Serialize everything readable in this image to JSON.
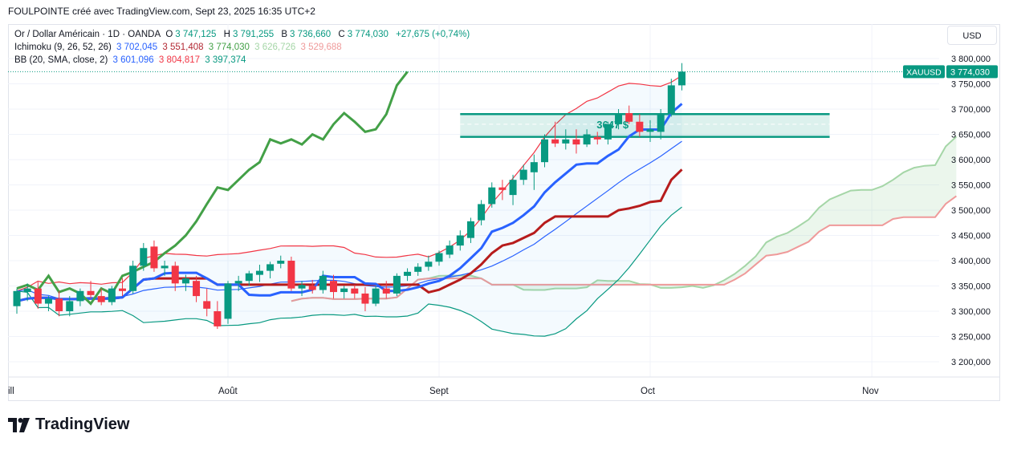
{
  "caption": "FOULPOINTE créé avec TradingView.com, Sept 23, 2025 16:35 UTC+2",
  "legend": {
    "symbol": "Or / Dollar Américain · 1D · OANDA",
    "ohlc": [
      {
        "k": "O",
        "v": "3 747,125"
      },
      {
        "k": "H",
        "v": "3 791,255"
      },
      {
        "k": "B",
        "v": "3 736,660"
      },
      {
        "k": "C",
        "v": "3 774,030"
      }
    ],
    "change": "+27,675 (+0,74%)",
    "ichimoku": {
      "label": "Ichimoku (9, 26, 52, 26)",
      "values": [
        "3 702,045",
        "3 551,408",
        "3 774,030",
        "3 626,726",
        "3 529,688"
      ]
    },
    "bb": {
      "label": "BB (20, SMA, close, 2)",
      "values": [
        "3 601,096",
        "3 804,817",
        "3 397,374"
      ]
    }
  },
  "currency_button": "USD",
  "logo_text": "TradingView",
  "colors": {
    "up": "#089981",
    "down": "#f23645",
    "tenkan": "#2962ff",
    "kijun": "#b71c1c",
    "chikou": "#43a047",
    "spanA": "#a5d6a7",
    "spanB": "#ef9a9a",
    "bb_upper": "#f23645",
    "bb_basis": "#2962ff",
    "bb_lower": "#089981",
    "price_line": "#089981",
    "zone": "#089981"
  },
  "chart_data": {
    "type": "candlestick",
    "symbol": "XAUUSD",
    "y_ticks": [
      3800000,
      3750000,
      3700000,
      3650000,
      3600000,
      3550000,
      3500000,
      3450000,
      3400000,
      3350000,
      3300000,
      3250000,
      3200000
    ],
    "y_tick_labels": [
      "3 800,000",
      "3 750,000",
      "3 700,000",
      "3 650,000",
      "3 600,000",
      "3 550,000",
      "3 500,000",
      "3 450,000",
      "3 400,000",
      "3 350,000",
      "3 300,000",
      "3 250,000",
      "3 200,000"
    ],
    "ylim": [
      3180000,
      3830000
    ],
    "x_labels": [
      {
        "label": "ill",
        "index": -1
      },
      {
        "label": "Août",
        "index": 20
      },
      {
        "label": "Sept",
        "index": 40
      },
      {
        "label": "Oct",
        "index": 60
      },
      {
        "label": "Nov",
        "index": 81
      }
    ],
    "last_price_label": "3 774,030",
    "symbol_tag": "XAUUSD",
    "zone": {
      "label": "3647 $",
      "top": 3690,
      "bottom": 3645,
      "mid": 3670,
      "start_index": 42,
      "end_index": 77
    },
    "candles": [
      {
        "o": 3310,
        "h": 3345,
        "l": 3295,
        "c": 3340
      },
      {
        "o": 3338,
        "h": 3355,
        "l": 3320,
        "c": 3345
      },
      {
        "o": 3345,
        "h": 3358,
        "l": 3305,
        "c": 3315
      },
      {
        "o": 3315,
        "h": 3330,
        "l": 3300,
        "c": 3325
      },
      {
        "o": 3325,
        "h": 3340,
        "l": 3290,
        "c": 3300
      },
      {
        "o": 3300,
        "h": 3330,
        "l": 3290,
        "c": 3320
      },
      {
        "o": 3320,
        "h": 3345,
        "l": 3310,
        "c": 3340
      },
      {
        "o": 3340,
        "h": 3360,
        "l": 3325,
        "c": 3332
      },
      {
        "o": 3330,
        "h": 3345,
        "l": 3312,
        "c": 3318
      },
      {
        "o": 3318,
        "h": 3350,
        "l": 3312,
        "c": 3345
      },
      {
        "o": 3345,
        "h": 3365,
        "l": 3330,
        "c": 3340
      },
      {
        "o": 3340,
        "h": 3400,
        "l": 3335,
        "c": 3390
      },
      {
        "o": 3390,
        "h": 3435,
        "l": 3380,
        "c": 3425
      },
      {
        "o": 3428,
        "h": 3440,
        "l": 3378,
        "c": 3385
      },
      {
        "o": 3385,
        "h": 3400,
        "l": 3370,
        "c": 3390
      },
      {
        "o": 3390,
        "h": 3398,
        "l": 3340,
        "c": 3355
      },
      {
        "o": 3355,
        "h": 3372,
        "l": 3340,
        "c": 3365
      },
      {
        "o": 3360,
        "h": 3370,
        "l": 3318,
        "c": 3330
      },
      {
        "o": 3320,
        "h": 3345,
        "l": 3290,
        "c": 3305
      },
      {
        "o": 3300,
        "h": 3320,
        "l": 3265,
        "c": 3270
      },
      {
        "o": 3285,
        "h": 3360,
        "l": 3275,
        "c": 3355
      },
      {
        "o": 3355,
        "h": 3370,
        "l": 3340,
        "c": 3360
      },
      {
        "o": 3360,
        "h": 3380,
        "l": 3350,
        "c": 3375
      },
      {
        "o": 3372,
        "h": 3392,
        "l": 3358,
        "c": 3380
      },
      {
        "o": 3380,
        "h": 3398,
        "l": 3365,
        "c": 3393
      },
      {
        "o": 3394,
        "h": 3410,
        "l": 3385,
        "c": 3400
      },
      {
        "o": 3400,
        "h": 3408,
        "l": 3340,
        "c": 3345
      },
      {
        "o": 3345,
        "h": 3360,
        "l": 3330,
        "c": 3352
      },
      {
        "o": 3350,
        "h": 3362,
        "l": 3335,
        "c": 3342
      },
      {
        "o": 3342,
        "h": 3380,
        "l": 3335,
        "c": 3370
      },
      {
        "o": 3360,
        "h": 3372,
        "l": 3325,
        "c": 3338
      },
      {
        "o": 3338,
        "h": 3350,
        "l": 3325,
        "c": 3345
      },
      {
        "o": 3345,
        "h": 3352,
        "l": 3325,
        "c": 3335
      },
      {
        "o": 3335,
        "h": 3348,
        "l": 3300,
        "c": 3315
      },
      {
        "o": 3315,
        "h": 3350,
        "l": 3310,
        "c": 3345
      },
      {
        "o": 3345,
        "h": 3360,
        "l": 3325,
        "c": 3335
      },
      {
        "o": 3335,
        "h": 3375,
        "l": 3330,
        "c": 3370
      },
      {
        "o": 3370,
        "h": 3385,
        "l": 3360,
        "c": 3378
      },
      {
        "o": 3378,
        "h": 3395,
        "l": 3370,
        "c": 3388
      },
      {
        "o": 3388,
        "h": 3410,
        "l": 3380,
        "c": 3398
      },
      {
        "o": 3398,
        "h": 3420,
        "l": 3390,
        "c": 3415
      },
      {
        "o": 3412,
        "h": 3440,
        "l": 3405,
        "c": 3430
      },
      {
        "o": 3430,
        "h": 3460,
        "l": 3420,
        "c": 3450
      },
      {
        "o": 3445,
        "h": 3485,
        "l": 3435,
        "c": 3478
      },
      {
        "o": 3480,
        "h": 3520,
        "l": 3470,
        "c": 3512
      },
      {
        "o": 3512,
        "h": 3555,
        "l": 3505,
        "c": 3545
      },
      {
        "o": 3545,
        "h": 3560,
        "l": 3520,
        "c": 3540
      },
      {
        "o": 3530,
        "h": 3570,
        "l": 3510,
        "c": 3560
      },
      {
        "o": 3560,
        "h": 3590,
        "l": 3550,
        "c": 3580
      },
      {
        "o": 3575,
        "h": 3610,
        "l": 3540,
        "c": 3595
      },
      {
        "o": 3595,
        "h": 3650,
        "l": 3585,
        "c": 3640
      },
      {
        "o": 3640,
        "h": 3675,
        "l": 3625,
        "c": 3632
      },
      {
        "o": 3632,
        "h": 3660,
        "l": 3620,
        "c": 3640
      },
      {
        "o": 3640,
        "h": 3660,
        "l": 3612,
        "c": 3630
      },
      {
        "o": 3630,
        "h": 3660,
        "l": 3625,
        "c": 3650
      },
      {
        "o": 3645,
        "h": 3655,
        "l": 3630,
        "c": 3640
      },
      {
        "o": 3640,
        "h": 3675,
        "l": 3630,
        "c": 3670
      },
      {
        "o": 3670,
        "h": 3700,
        "l": 3660,
        "c": 3692
      },
      {
        "o": 3692,
        "h": 3707,
        "l": 3670,
        "c": 3675
      },
      {
        "o": 3675,
        "h": 3690,
        "l": 3645,
        "c": 3655
      },
      {
        "o": 3655,
        "h": 3678,
        "l": 3635,
        "c": 3660
      },
      {
        "o": 3655,
        "h": 3700,
        "l": 3640,
        "c": 3690
      },
      {
        "o": 3690,
        "h": 3760,
        "l": 3685,
        "c": 3747
      },
      {
        "o": 3747,
        "h": 3791,
        "l": 3737,
        "c": 3774
      }
    ]
  }
}
